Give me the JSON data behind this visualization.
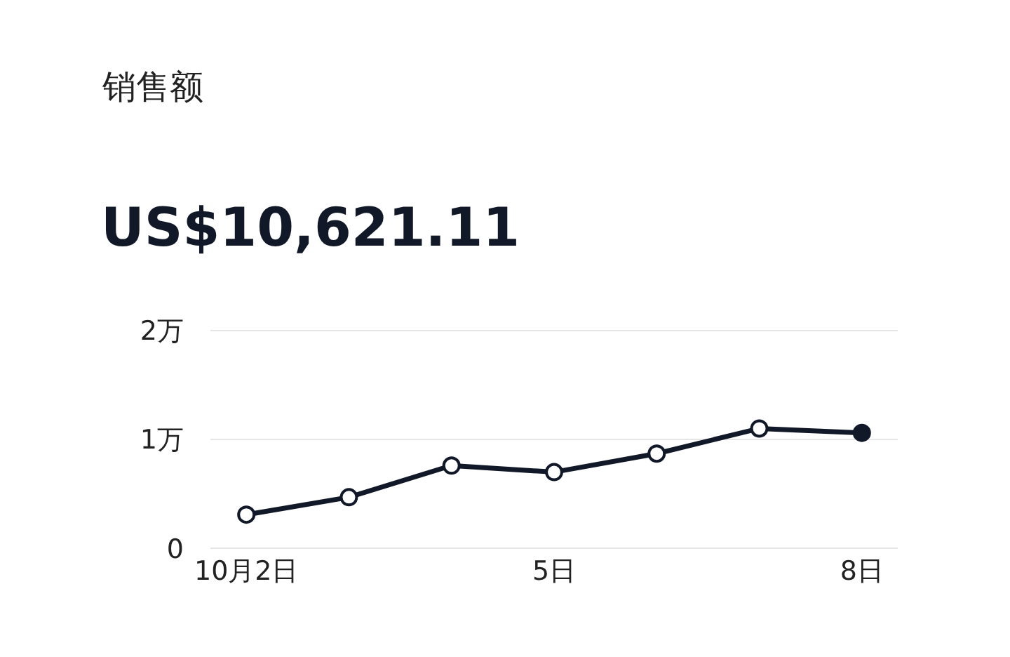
{
  "chart_data": {
    "type": "line",
    "title": "销售额",
    "subtitle": "US$10,621.11",
    "categories": [
      "10月2日",
      null,
      null,
      "5日",
      null,
      null,
      "8日"
    ],
    "series": [
      {
        "color": "#111827",
        "values": [
          0.31,
          0.47,
          0.76,
          0.7,
          0.87,
          1.1,
          1.06
        ],
        "colors": [
          "#ffffff",
          "#ffffff",
          "#ffffff",
          "#ffffff",
          "#ffffff",
          "#ffffff",
          "#111827"
        ]
      }
    ],
    "ylim": [
      -0.03,
      2.03
    ],
    "yticks": [
      0,
      {
        "value": 1,
        "label": "1万"
      },
      {
        "value": 2,
        "label": "2万"
      }
    ],
    "grid": "y",
    "marker": "circle",
    "line_style": "solid",
    "legend": false
  }
}
